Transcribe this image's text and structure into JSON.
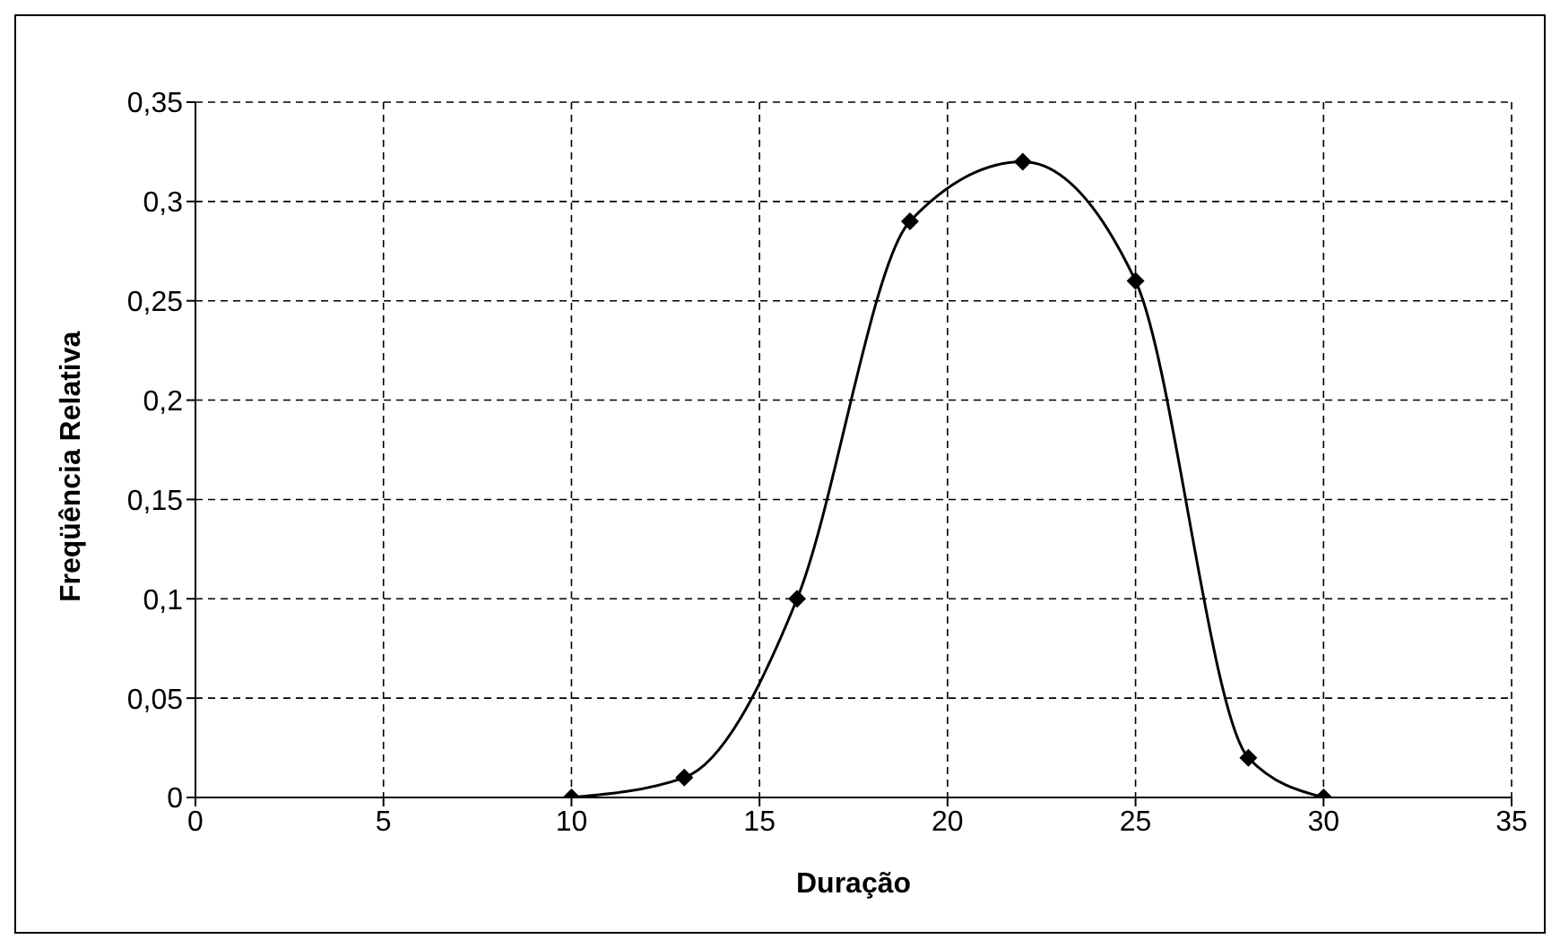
{
  "chart_data": {
    "type": "line",
    "xlabel": "Duração",
    "ylabel": "Freqüência Relativa",
    "x": [
      10,
      13,
      16,
      19,
      22,
      25,
      28,
      30
    ],
    "series": [
      {
        "color": "#000000",
        "values": [
          0,
          0.01,
          0.1,
          0.29,
          0.32,
          0.26,
          0.02,
          0
        ]
      }
    ],
    "xlim": [
      0,
      35
    ],
    "xticks": [
      0,
      5,
      10,
      15,
      20,
      25,
      30,
      35
    ],
    "ylim": [
      0,
      0.35
    ],
    "yticks": [
      0,
      {
        "value": 0.05,
        "label": "0,05"
      },
      {
        "value": 0.1,
        "label": "0,1"
      },
      {
        "value": 0.15,
        "label": "0,15"
      },
      {
        "value": 0.2,
        "label": "0,2"
      },
      {
        "value": 0.25,
        "label": "0,25"
      },
      {
        "value": 0.3,
        "label": "0,3"
      },
      {
        "value": 0.35,
        "label": "0,35"
      }
    ],
    "grid": true,
    "legend": false,
    "marker": "diamond",
    "line_style": "solid"
  }
}
